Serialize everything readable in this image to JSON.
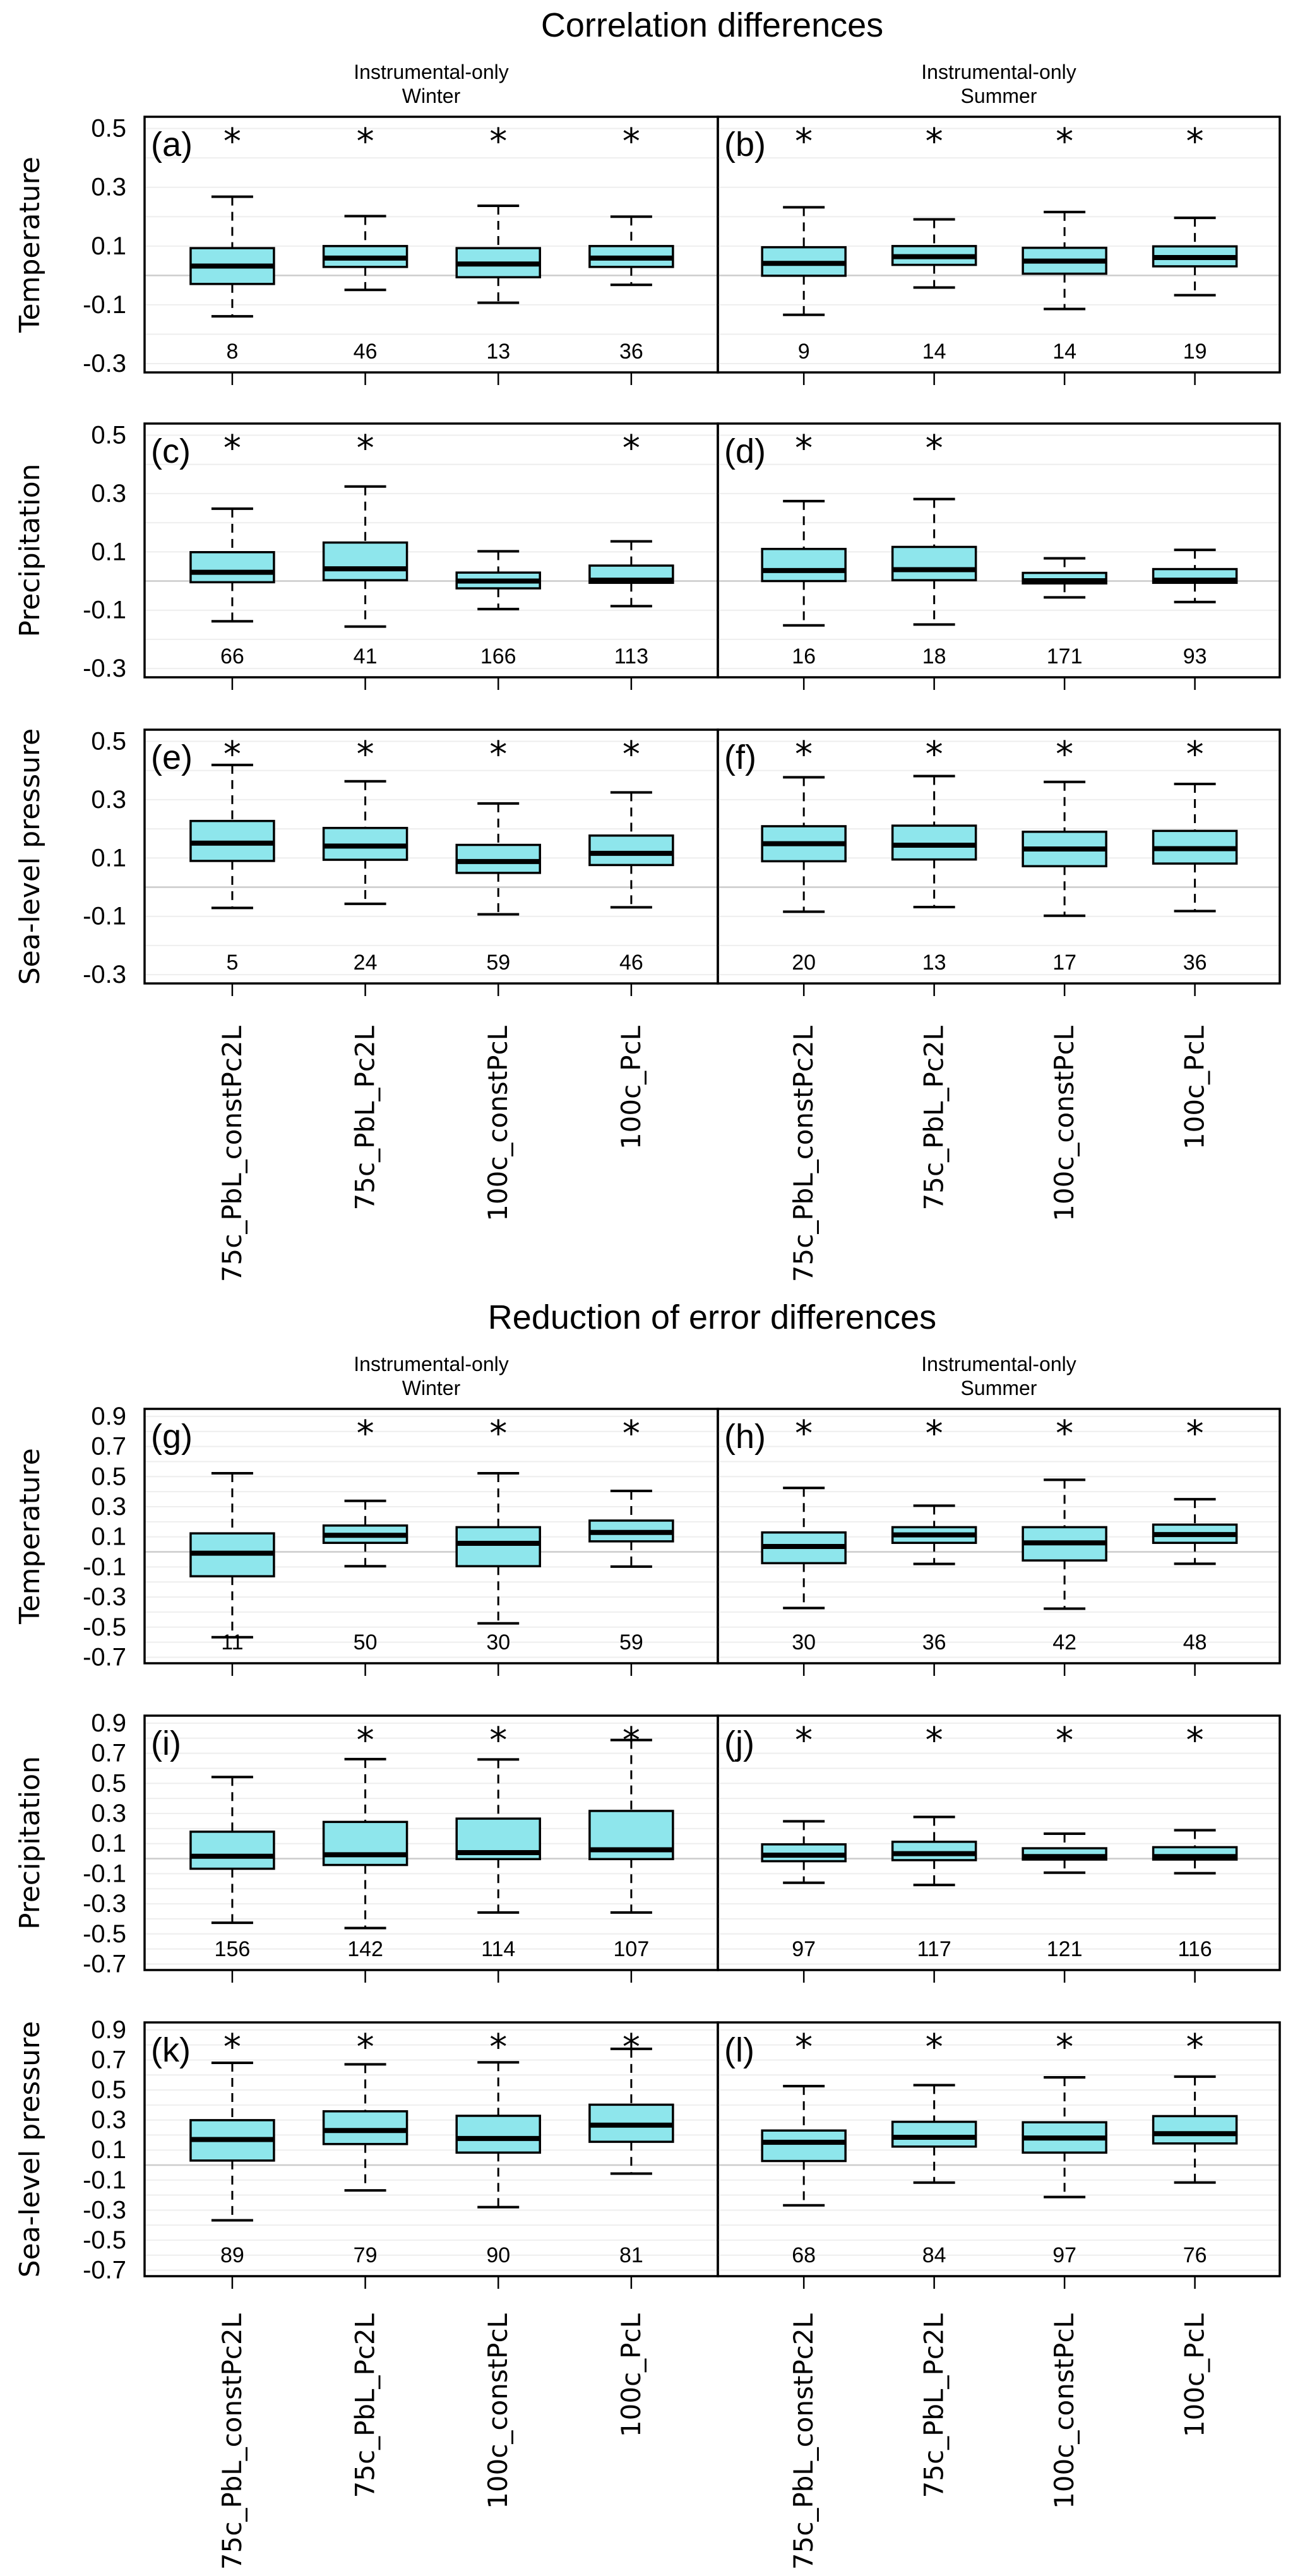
{
  "colors": {
    "box_fill": "#8ee6ec",
    "box_stroke": "#000000",
    "grid": "#eeeeee",
    "zero_line": "#cccccc"
  },
  "chart_data": [
    {
      "type": "boxplot",
      "title": "Correlation differences",
      "columns": [
        "Instrumental-only\nWinter",
        "Instrumental-only\nSummer"
      ],
      "column_titles": [
        [
          "Instrumental-only",
          "Winter"
        ],
        [
          "Instrumental-only",
          "Summer"
        ]
      ],
      "rows": [
        "Temperature",
        "Precipitation",
        "Sea-level pressure"
      ],
      "categories": [
        "75c_PbL_constPc2L",
        "75c_PbL_Pc2L",
        "100c_constPcL",
        "100c_PcL"
      ],
      "yticks": [
        "0.5",
        "0.3",
        "0.1",
        "-0.1",
        "-0.3"
      ],
      "ytick_values": [
        0.5,
        0.3,
        0.1,
        -0.1,
        -0.3
      ],
      "grid_values": [
        0.5,
        0.4,
        0.3,
        0.2,
        0.1,
        -0.1,
        -0.2,
        -0.3
      ],
      "ylim": [
        -0.33,
        0.54
      ],
      "zero_line": 0,
      "panels": [
        {
          "label": "(a)",
          "row": 0,
          "col": 0,
          "n": [
            "8",
            "46",
            "13",
            "36"
          ],
          "significant": [
            true,
            true,
            true,
            true
          ],
          "boxes": [
            {
              "lower": -0.139,
              "q1": -0.029,
              "median": 0.032,
              "q3": 0.093,
              "upper": 0.268
            },
            {
              "lower": -0.049,
              "q1": 0.029,
              "median": 0.059,
              "q3": 0.1,
              "upper": 0.202
            },
            {
              "lower": -0.093,
              "q1": -0.006,
              "median": 0.039,
              "q3": 0.093,
              "upper": 0.237
            },
            {
              "lower": -0.032,
              "q1": 0.029,
              "median": 0.059,
              "q3": 0.1,
              "upper": 0.2
            }
          ]
        },
        {
          "label": "(b)",
          "row": 0,
          "col": 1,
          "n": [
            "9",
            "14",
            "14",
            "19"
          ],
          "significant": [
            true,
            true,
            true,
            true
          ],
          "boxes": [
            {
              "lower": -0.134,
              "q1": -0.001,
              "median": 0.041,
              "q3": 0.096,
              "upper": 0.232
            },
            {
              "lower": -0.041,
              "q1": 0.036,
              "median": 0.064,
              "q3": 0.1,
              "upper": 0.191
            },
            {
              "lower": -0.114,
              "q1": 0.006,
              "median": 0.049,
              "q3": 0.094,
              "upper": 0.216
            },
            {
              "lower": -0.067,
              "q1": 0.031,
              "median": 0.061,
              "q3": 0.099,
              "upper": 0.196
            }
          ]
        },
        {
          "label": "(c)",
          "row": 1,
          "col": 0,
          "n": [
            "66",
            "41",
            "166",
            "113"
          ],
          "significant": [
            true,
            true,
            false,
            true
          ],
          "boxes": [
            {
              "lower": -0.138,
              "q1": -0.004,
              "median": 0.03,
              "q3": 0.099,
              "upper": 0.248
            },
            {
              "lower": -0.156,
              "q1": 0.003,
              "median": 0.042,
              "q3": 0.132,
              "upper": 0.324
            },
            {
              "lower": -0.096,
              "q1": -0.025,
              "median": 0.0,
              "q3": 0.029,
              "upper": 0.102
            },
            {
              "lower": -0.086,
              "q1": -0.006,
              "median": 0.003,
              "q3": 0.053,
              "upper": 0.136
            }
          ]
        },
        {
          "label": "(d)",
          "row": 1,
          "col": 1,
          "n": [
            "16",
            "18",
            "171",
            "93"
          ],
          "significant": [
            true,
            true,
            false,
            false
          ],
          "boxes": [
            {
              "lower": -0.152,
              "q1": 0.0,
              "median": 0.036,
              "q3": 0.11,
              "upper": 0.274
            },
            {
              "lower": -0.149,
              "q1": 0.003,
              "median": 0.039,
              "q3": 0.117,
              "upper": 0.281
            },
            {
              "lower": -0.056,
              "q1": -0.008,
              "median": 0.001,
              "q3": 0.028,
              "upper": 0.078
            },
            {
              "lower": -0.072,
              "q1": -0.006,
              "median": 0.003,
              "q3": 0.041,
              "upper": 0.107
            }
          ]
        },
        {
          "label": "(e)",
          "row": 2,
          "col": 0,
          "n": [
            "5",
            "24",
            "59",
            "46"
          ],
          "significant": [
            true,
            true,
            true,
            true
          ],
          "boxes": [
            {
              "lower": -0.071,
              "q1": 0.09,
              "median": 0.151,
              "q3": 0.227,
              "upper": 0.419
            },
            {
              "lower": -0.057,
              "q1": 0.094,
              "median": 0.141,
              "q3": 0.203,
              "upper": 0.363
            },
            {
              "lower": -0.093,
              "q1": 0.049,
              "median": 0.088,
              "q3": 0.145,
              "upper": 0.287
            },
            {
              "lower": -0.069,
              "q1": 0.076,
              "median": 0.116,
              "q3": 0.177,
              "upper": 0.325
            }
          ]
        },
        {
          "label": "(f)",
          "row": 2,
          "col": 1,
          "n": [
            "20",
            "13",
            "17",
            "36"
          ],
          "significant": [
            true,
            true,
            true,
            true
          ],
          "boxes": [
            {
              "lower": -0.084,
              "q1": 0.089,
              "median": 0.149,
              "q3": 0.209,
              "upper": 0.377
            },
            {
              "lower": -0.068,
              "q1": 0.095,
              "median": 0.144,
              "q3": 0.211,
              "upper": 0.381
            },
            {
              "lower": -0.098,
              "q1": 0.072,
              "median": 0.131,
              "q3": 0.19,
              "upper": 0.361
            },
            {
              "lower": -0.082,
              "q1": 0.081,
              "median": 0.132,
              "q3": 0.193,
              "upper": 0.354
            }
          ]
        }
      ]
    },
    {
      "type": "boxplot",
      "title": "Reduction of error differences",
      "column_titles": [
        [
          "Instrumental-only",
          "Winter"
        ],
        [
          "Instrumental-only",
          "Summer"
        ]
      ],
      "rows": [
        "Temperature",
        "Precipitation",
        "Sea-level pressure"
      ],
      "categories": [
        "75c_PbL_constPc2L",
        "75c_PbL_Pc2L",
        "100c_constPcL",
        "100c_PcL"
      ],
      "yticks": [
        "0.9",
        "0.7",
        "0.5",
        "0.3",
        "0.1",
        "-0.1",
        "-0.3",
        "-0.5",
        "-0.7"
      ],
      "ytick_values": [
        0.9,
        0.7,
        0.5,
        0.3,
        0.1,
        -0.1,
        -0.3,
        -0.5,
        -0.7
      ],
      "grid_values": [
        0.9,
        0.8,
        0.7,
        0.6,
        0.5,
        0.4,
        0.3,
        0.2,
        0.1,
        -0.1,
        -0.2,
        -0.3,
        -0.4,
        -0.5,
        -0.6,
        -0.7
      ],
      "ylim": [
        -0.74,
        0.95
      ],
      "zero_line": 0,
      "panels": [
        {
          "label": "(g)",
          "row": 0,
          "col": 0,
          "n": [
            "11",
            "50",
            "30",
            "59"
          ],
          "significant": [
            false,
            true,
            true,
            true
          ],
          "boxes": [
            {
              "lower": -0.567,
              "q1": -0.162,
              "median": -0.009,
              "q3": 0.123,
              "upper": 0.522
            },
            {
              "lower": -0.095,
              "q1": 0.06,
              "median": 0.11,
              "q3": 0.175,
              "upper": 0.339
            },
            {
              "lower": -0.475,
              "q1": -0.095,
              "median": 0.057,
              "q3": 0.164,
              "upper": 0.522
            },
            {
              "lower": -0.098,
              "q1": 0.07,
              "median": 0.129,
              "q3": 0.208,
              "upper": 0.405
            }
          ]
        },
        {
          "label": "(h)",
          "row": 0,
          "col": 1,
          "n": [
            "30",
            "36",
            "42",
            "48"
          ],
          "significant": [
            true,
            true,
            true,
            true
          ],
          "boxes": [
            {
              "lower": -0.373,
              "q1": -0.075,
              "median": 0.036,
              "q3": 0.129,
              "upper": 0.425
            },
            {
              "lower": -0.08,
              "q1": 0.06,
              "median": 0.113,
              "q3": 0.164,
              "upper": 0.307
            },
            {
              "lower": -0.377,
              "q1": -0.057,
              "median": 0.06,
              "q3": 0.164,
              "upper": 0.479
            },
            {
              "lower": -0.079,
              "q1": 0.06,
              "median": 0.115,
              "q3": 0.181,
              "upper": 0.35
            }
          ]
        },
        {
          "label": "(i)",
          "row": 1,
          "col": 0,
          "n": [
            "156",
            "142",
            "114",
            "107"
          ],
          "significant": [
            false,
            true,
            true,
            true
          ],
          "boxes": [
            {
              "lower": -0.426,
              "q1": -0.067,
              "median": 0.016,
              "q3": 0.179,
              "upper": 0.542
            },
            {
              "lower": -0.461,
              "q1": -0.042,
              "median": 0.026,
              "q3": 0.244,
              "upper": 0.661
            },
            {
              "lower": -0.358,
              "q1": -0.003,
              "median": 0.04,
              "q3": 0.266,
              "upper": 0.659
            },
            {
              "lower": -0.358,
              "q1": -0.003,
              "median": 0.059,
              "q3": 0.317,
              "upper": 0.788
            }
          ]
        },
        {
          "label": "(j)",
          "row": 1,
          "col": 1,
          "n": [
            "97",
            "117",
            "121",
            "116"
          ],
          "significant": [
            true,
            true,
            true,
            true
          ],
          "boxes": [
            {
              "lower": -0.16,
              "q1": -0.017,
              "median": 0.023,
              "q3": 0.095,
              "upper": 0.248
            },
            {
              "lower": -0.175,
              "q1": -0.01,
              "median": 0.033,
              "q3": 0.112,
              "upper": 0.277
            },
            {
              "lower": -0.093,
              "q1": -0.006,
              "median": 0.014,
              "q3": 0.069,
              "upper": 0.166
            },
            {
              "lower": -0.097,
              "q1": -0.006,
              "median": 0.014,
              "q3": 0.076,
              "upper": 0.189
            }
          ]
        },
        {
          "label": "(k)",
          "row": 2,
          "col": 0,
          "n": [
            "89",
            "79",
            "90",
            "81"
          ],
          "significant": [
            true,
            true,
            true,
            true
          ],
          "boxes": [
            {
              "lower": -0.368,
              "q1": 0.03,
              "median": 0.17,
              "q3": 0.299,
              "upper": 0.681
            },
            {
              "lower": -0.169,
              "q1": 0.14,
              "median": 0.23,
              "q3": 0.358,
              "upper": 0.671
            },
            {
              "lower": -0.28,
              "q1": 0.083,
              "median": 0.177,
              "q3": 0.328,
              "upper": 0.684
            },
            {
              "lower": -0.057,
              "q1": 0.155,
              "median": 0.266,
              "q3": 0.402,
              "upper": 0.774
            }
          ]
        },
        {
          "label": "(l)",
          "row": 2,
          "col": 1,
          "n": [
            "68",
            "84",
            "97",
            "76"
          ],
          "significant": [
            true,
            true,
            true,
            true
          ],
          "boxes": [
            {
              "lower": -0.268,
              "q1": 0.027,
              "median": 0.152,
              "q3": 0.23,
              "upper": 0.526
            },
            {
              "lower": -0.117,
              "q1": 0.123,
              "median": 0.185,
              "q3": 0.288,
              "upper": 0.532
            },
            {
              "lower": -0.213,
              "q1": 0.083,
              "median": 0.18,
              "q3": 0.285,
              "upper": 0.584
            },
            {
              "lower": -0.116,
              "q1": 0.144,
              "median": 0.209,
              "q3": 0.326,
              "upper": 0.589
            }
          ]
        }
      ]
    }
  ]
}
